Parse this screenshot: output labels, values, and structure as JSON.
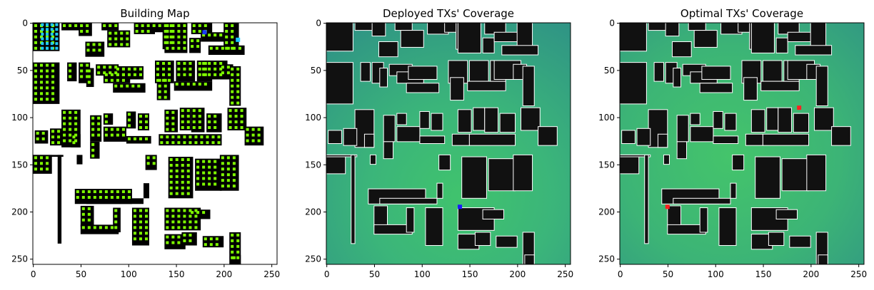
{
  "figure": {
    "panels": [
      {
        "title": "Building Map",
        "kind": "building-map"
      },
      {
        "title": "Deployed TXs' Coverage",
        "kind": "coverage"
      },
      {
        "title": "Optimal TXs' Coverage",
        "kind": "coverage"
      }
    ],
    "x_ticks": [
      "0",
      "50",
      "100",
      "150",
      "200",
      "250"
    ],
    "y_ticks": [
      "0",
      "50",
      "100",
      "150",
      "200",
      "250"
    ]
  },
  "colors": {
    "building": "#111111",
    "building_map_bg": "#ffffff",
    "candidate_marker": "#7fff00",
    "selected_marker": "#1ec8ff",
    "deployed_tx": "#1a1aff",
    "optimal_tx": "#ff2020",
    "coverage_high": "#3fc070",
    "coverage_mid": "#37ad80",
    "coverage_low": "#2d8f86",
    "building_outline": "#ffffff"
  },
  "chart_data": [
    {
      "type": "heatmap",
      "title": "Building Map",
      "xlim": [
        0,
        256
      ],
      "ylim": [
        256,
        0
      ],
      "x_ticks": [
        0,
        50,
        100,
        150,
        200,
        250
      ],
      "y_ticks": [
        0,
        50,
        100,
        150,
        200,
        250
      ],
      "selected_points": [
        [
          180,
          10
        ],
        [
          215,
          18
        ]
      ]
    },
    {
      "type": "heatmap",
      "title": "Deployed TXs' Coverage",
      "xlim": [
        0,
        256
      ],
      "ylim": [
        256,
        0
      ],
      "x_ticks": [
        0,
        50,
        100,
        150,
        200,
        250
      ],
      "y_ticks": [
        0,
        50,
        100,
        150,
        200,
        250
      ],
      "tx_points": [
        [
          140,
          195
        ]
      ]
    },
    {
      "type": "heatmap",
      "title": "Optimal TXs' Coverage",
      "xlim": [
        0,
        256
      ],
      "ylim": [
        256,
        0
      ],
      "x_ticks": [
        0,
        50,
        100,
        150,
        200,
        250
      ],
      "y_ticks": [
        0,
        50,
        100,
        150,
        200,
        250
      ],
      "tx_points": [
        [
          188,
          90
        ],
        [
          50,
          195
        ]
      ]
    }
  ]
}
